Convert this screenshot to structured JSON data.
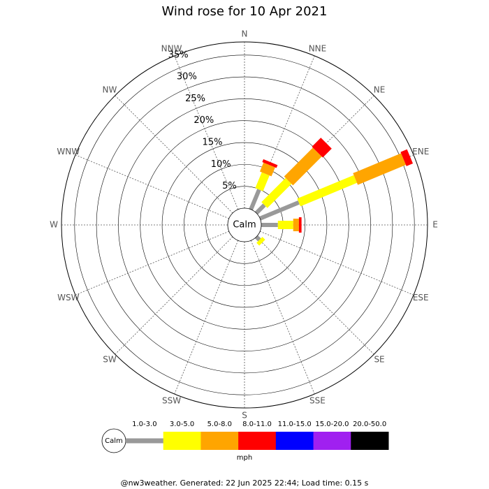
{
  "chart_data": {
    "type": "windrose",
    "title": "Wind rose for 10 Apr 2021",
    "directions": [
      "N",
      "NNE",
      "NE",
      "ENE",
      "E",
      "ESE",
      "SE",
      "SSE",
      "S",
      "SSW",
      "SW",
      "WSW",
      "W",
      "WNW",
      "NW",
      "NNW"
    ],
    "series": [
      {
        "name": "1.0-3.0",
        "color": "#999999",
        "values": [
          0,
          4.9,
          2.6,
          9.6,
          3.8,
          0,
          1.0,
          0,
          0,
          0,
          0,
          0,
          0,
          0,
          0,
          0
        ]
      },
      {
        "name": "3.0-5.0",
        "color": "#ffff00",
        "values": [
          0,
          3.9,
          7.8,
          14.0,
          3.5,
          0,
          0.9,
          0,
          0,
          0,
          0,
          0,
          0,
          0,
          0,
          0
        ]
      },
      {
        "name": "5.0-8.0",
        "color": "#ffa500",
        "values": [
          0,
          2.2,
          9.3,
          11.9,
          1.3,
          0,
          0,
          0,
          0,
          0,
          0,
          0,
          0,
          0,
          0,
          0
        ]
      },
      {
        "name": "8.0-11.0",
        "color": "#ff0000",
        "values": [
          0,
          0.7,
          2.9,
          1.6,
          0.6,
          0,
          0,
          0,
          0,
          0,
          0,
          0,
          0,
          0,
          0,
          0
        ]
      },
      {
        "name": "11.0-15.0",
        "color": "#0000ff",
        "values": [
          0,
          0,
          0,
          0,
          0,
          0,
          0,
          0,
          0,
          0,
          0,
          0,
          0,
          0,
          0,
          0
        ]
      },
      {
        "name": "15.0-20.0",
        "color": "#a020f0",
        "values": [
          0,
          0,
          0,
          0,
          0,
          0,
          0,
          0,
          0,
          0,
          0,
          0,
          0,
          0,
          0,
          0
        ]
      },
      {
        "name": "20.0-50.0",
        "color": "#000000",
        "values": [
          0,
          0,
          0,
          0,
          0,
          0,
          0,
          0,
          0,
          0,
          0,
          0,
          0,
          0,
          0,
          0
        ]
      }
    ],
    "rlim": [
      0,
      38
    ],
    "rticks": [
      {
        "value": 5,
        "label": "5%"
      },
      {
        "value": 10,
        "label": "10%"
      },
      {
        "value": 15,
        "label": "15%"
      },
      {
        "value": 20,
        "label": "20%"
      },
      {
        "value": 25,
        "label": "25%"
      },
      {
        "value": 30,
        "label": "30%"
      },
      {
        "value": 35,
        "label": "35%"
      }
    ],
    "calm_label": "Calm",
    "unit": "mph"
  },
  "footer": "@nw3weather. Generated: 22 Jun 2025 22:44; Load time: 0.15 s"
}
